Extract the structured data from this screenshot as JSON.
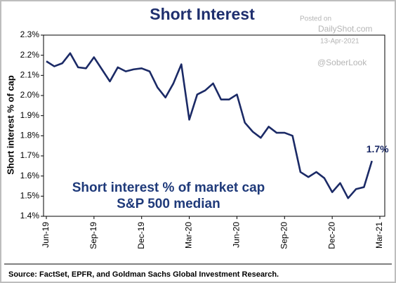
{
  "chart_data": {
    "type": "line",
    "title": "Short Interest",
    "watermark": [
      "Posted on",
      "DailyShot.com",
      "13-Apr-2021",
      "@SoberLook"
    ],
    "y_label": "Short interest % of cap",
    "annotation": [
      "Short interest % of market cap",
      "S&P 500 median"
    ],
    "source": "Source: FactSet, EPFR, and Goldman Sachs Global Investment Research.",
    "categories": [
      "Jun-19",
      null,
      null,
      null,
      null,
      null,
      "Sep-19",
      null,
      null,
      null,
      null,
      null,
      "Dec-19",
      null,
      null,
      null,
      null,
      null,
      "Mar-20",
      null,
      null,
      null,
      null,
      null,
      "Jun-20",
      null,
      null,
      null,
      null,
      null,
      "Sep-20",
      null,
      null,
      null,
      null,
      null,
      "Dec-20",
      null,
      null,
      null,
      null,
      null,
      "Mar-21"
    ],
    "series": [
      {
        "name": "Short interest % of market cap",
        "color": "#1b2a66",
        "values": [
          2.17,
          2.145,
          2.16,
          2.21,
          2.14,
          2.135,
          2.19,
          2.13,
          2.07,
          2.14,
          2.12,
          2.13,
          2.135,
          2.12,
          2.04,
          1.99,
          2.06,
          2.155,
          1.88,
          2.005,
          2.025,
          2.06,
          1.98,
          1.98,
          2.005,
          1.865,
          1.82,
          1.79,
          1.845,
          1.815,
          1.815,
          1.8,
          1.62,
          1.595,
          1.62,
          1.59,
          1.52,
          1.565,
          1.49,
          1.535,
          1.545,
          1.675,
          null
        ],
        "value_labels": [
          null,
          null,
          null,
          null,
          null,
          null,
          null,
          null,
          null,
          null,
          null,
          null,
          null,
          null,
          null,
          null,
          null,
          null,
          null,
          null,
          null,
          null,
          null,
          null,
          null,
          null,
          null,
          null,
          null,
          null,
          null,
          null,
          null,
          null,
          null,
          null,
          null,
          null,
          null,
          null,
          null,
          "1.7%",
          null
        ]
      }
    ],
    "ylim": [
      1.4,
      2.3
    ],
    "yticks": [
      {
        "value": 1.4,
        "label": "1.4%"
      },
      {
        "value": 1.5,
        "label": "1.5%"
      },
      {
        "value": 1.6,
        "label": "1.6%"
      },
      {
        "value": 1.7,
        "label": "1.7%"
      },
      {
        "value": 1.8,
        "label": "1.8%"
      },
      {
        "value": 1.9,
        "label": "1.9%"
      },
      {
        "value": 2.0,
        "label": "2.0%"
      },
      {
        "value": 2.1,
        "label": "2.1%"
      },
      {
        "value": 2.2,
        "label": "2.2%"
      },
      {
        "value": 2.3,
        "label": "2.3%"
      }
    ],
    "grid": false
  }
}
